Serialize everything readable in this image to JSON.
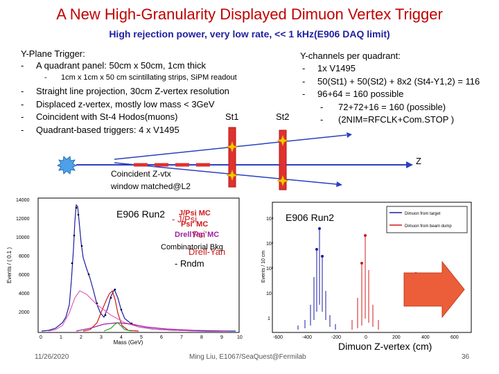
{
  "slide": {
    "title": "A New High-Granularity Displayed Dimuon Vertex Trigger",
    "subtitle": "High rejection power, very low rate,  << 1 kHz(E906 DAQ limit)"
  },
  "left_list": {
    "heading": "Y-Plane Trigger:",
    "items": [
      {
        "bullet": "-",
        "text": "A quadrant panel: 50cm x 50cm, 1cm thick"
      },
      {
        "bullet": "-",
        "text": "1cm x 1cm x 50 cm scintillating strips, SiPM readout"
      },
      {
        "bullet": "-",
        "text": "Straight line projection, 30cm Z-vertex resolution"
      },
      {
        "bullet": "-",
        "text": "Displaced z-vertex, mostly low mass < 3GeV"
      },
      {
        "bullet": "-",
        "text": "Coincident with St-4 Hodos(muons)"
      },
      {
        "bullet": "-",
        "text": "Quadrant-based triggers: 4 x V1495"
      }
    ]
  },
  "right_list": {
    "heading": "Y-channels per quadrant:",
    "items": [
      {
        "bullet": "-",
        "text": "1x V1495"
      },
      {
        "bullet": "-",
        "text": "50(St1) + 50(St2) + 8x2 (St4-Y1,2) = 116"
      },
      {
        "bullet": "-",
        "text": "96+64 = 160 possible"
      },
      {
        "bullet": "-",
        "text": "72+72+16 = 160 (possible)"
      },
      {
        "bullet": "-",
        "text": "(2NIM=RFCLK+Com.STOP )"
      }
    ]
  },
  "diagram": {
    "st1": "St1",
    "st2": "St2",
    "z_axis": "Z",
    "coincident_1": "Coincident Z-vtx",
    "coincident_2": "window matched@L2"
  },
  "plot_left": {
    "run_label": "E906 Run2",
    "legend": {
      "jpsi_mc": "J/Psi MC",
      "jpsi": "- J/Psi",
      "psi_mc": "Psi' MC",
      "psi": "Psi'",
      "drellyan_mc": "DrellYan MC",
      "drellyan": "Drell-Yan",
      "comb_bkg": "Combinatorial Bkg",
      "rndm": "- Rndm"
    },
    "ylabel": "Events / ( 0.1 )",
    "xlabel": "Mass (GeV)",
    "yticks": [
      "14000",
      "12000",
      "10000",
      "8000",
      "6000",
      "4000",
      "2000"
    ],
    "xticks": [
      "0",
      "1",
      "2",
      "3",
      "4",
      "5",
      "6",
      "7",
      "8",
      "9",
      "10"
    ]
  },
  "plot_right": {
    "run_label": "E906 Run2",
    "ylabel": "Events / 10 cm",
    "xlabel": "Dimuon Z-vertex (cm)",
    "legend_target": "Dimuon from target",
    "legend_dump": "Dimuon from beam dump",
    "yticks": [
      "10⁴",
      "10³",
      "10²",
      "10",
      "1"
    ],
    "xticks": [
      "-600",
      "-400",
      "-200",
      "0",
      "200",
      "400",
      "600"
    ]
  },
  "footer": {
    "date": "11/26/2020",
    "author": "Ming Liu, E1067/SeaQuest@Fermilab",
    "page": "36"
  },
  "colors": {
    "title": "#c00000",
    "subtitle": "#1f1f9f",
    "track": "#2a3fbf",
    "detector": "#e03030",
    "hit": "#f5c800",
    "arrow": "#ec5d3a",
    "burst": "#4fa0e8"
  }
}
